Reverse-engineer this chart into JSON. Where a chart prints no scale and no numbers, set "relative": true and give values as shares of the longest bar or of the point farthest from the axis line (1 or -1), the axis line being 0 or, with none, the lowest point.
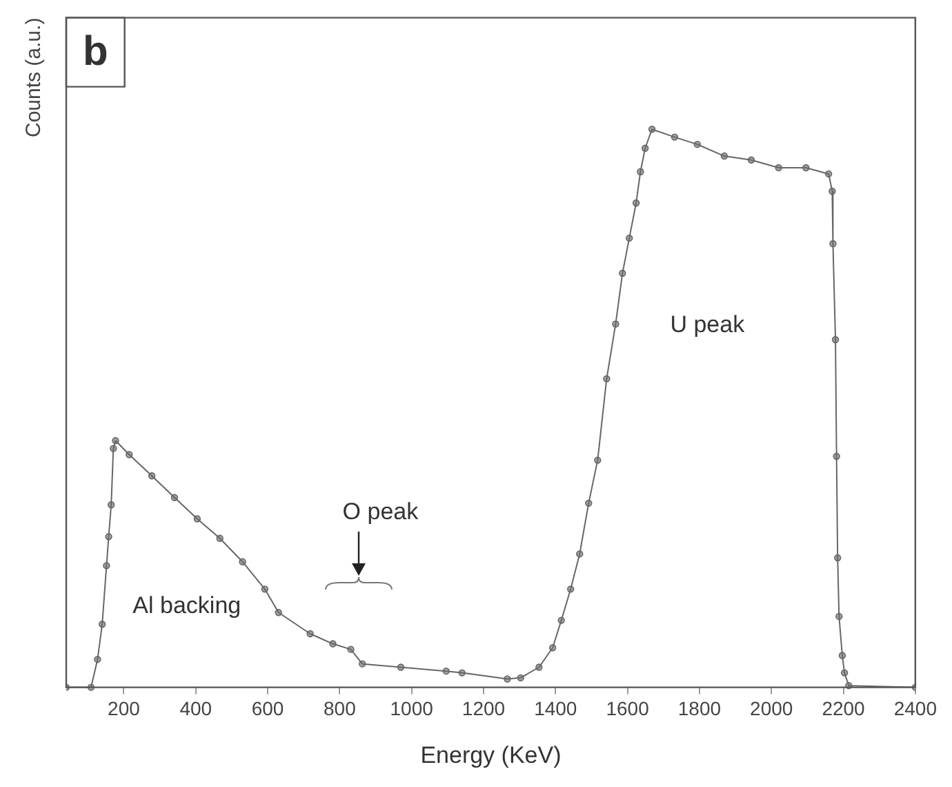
{
  "chart_data": {
    "type": "line",
    "relative": true,
    "xlabel": "Energy (KeV)",
    "ylabel": "Counts (a.u.)",
    "xlim": [
      40,
      2400
    ],
    "xticks": [
      200,
      400,
      600,
      800,
      1000,
      1200,
      1400,
      1600,
      1800,
      2000,
      2200,
      2400
    ],
    "tick_labels": "x",
    "grid": false,
    "legend": false,
    "marker": "circle",
    "line_style": "solid",
    "annotations": [
      "b",
      "U peak",
      "O peak",
      "Al backing"
    ],
    "series": [
      {
        "color": "#666666",
        "x": [
          40,
          109,
          127,
          140,
          152,
          158,
          165,
          171,
          177,
          215,
          278,
          341,
          404,
          467,
          530,
          592,
          630,
          718,
          781,
          831,
          863,
          970,
          1096,
          1140,
          1266,
          1303,
          1354,
          1392,
          1416,
          1442,
          1467,
          1492,
          1517,
          1542,
          1567,
          1586,
          1605,
          1624,
          1636,
          1649,
          1668,
          1731,
          1794,
          1869,
          1944,
          2020,
          2096,
          2159,
          2169,
          2171,
          2178,
          2181,
          2184,
          2188,
          2197,
          2203,
          2215,
          2400
        ],
        "values": [
          0,
          0,
          0.05,
          0.113,
          0.218,
          0.27,
          0.327,
          0.428,
          0.442,
          0.417,
          0.379,
          0.34,
          0.302,
          0.267,
          0.225,
          0.176,
          0.134,
          0.096,
          0.078,
          0.068,
          0.042,
          0.036,
          0.029,
          0.026,
          0.015,
          0.017,
          0.036,
          0.071,
          0.12,
          0.176,
          0.239,
          0.33,
          0.407,
          0.553,
          0.651,
          0.742,
          0.805,
          0.868,
          0.924,
          0.966,
          1.0,
          0.986,
          0.973,
          0.952,
          0.945,
          0.931,
          0.931,
          0.92,
          0.889,
          0.795,
          0.623,
          0.414,
          0.232,
          0.127,
          0.057,
          0.026,
          0.003,
          0
        ]
      }
    ]
  }
}
